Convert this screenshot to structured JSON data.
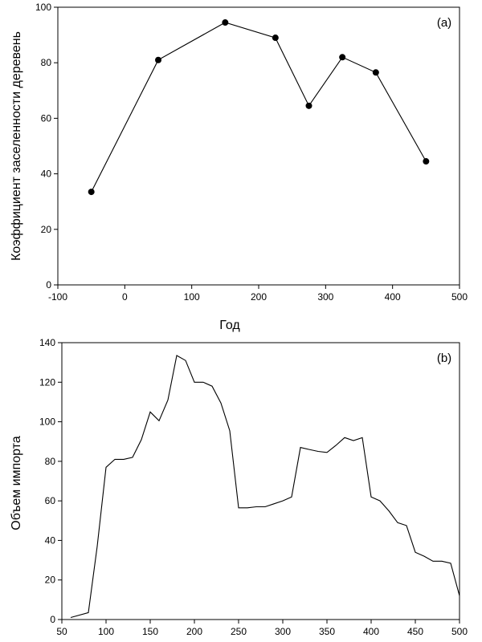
{
  "chart_data": [
    {
      "id": "a",
      "type": "line",
      "panel_label": "(a)",
      "xlabel": "Год",
      "ylabel": "Коэффициент заселенности деревень",
      "xlim": [
        -100,
        500
      ],
      "ylim": [
        0,
        100
      ],
      "xticks": [
        -100,
        0,
        100,
        200,
        300,
        400,
        500
      ],
      "yticks": [
        0,
        20,
        40,
        60,
        80,
        100
      ],
      "markers": true,
      "x": [
        -50,
        50,
        150,
        225,
        275,
        325,
        375,
        450
      ],
      "y": [
        33.5,
        81,
        94.5,
        89,
        64.5,
        82,
        76.5,
        44.5
      ]
    },
    {
      "id": "b",
      "type": "line",
      "panel_label": "(b)",
      "xlabel": "",
      "ylabel": "Объем импорта",
      "xlim": [
        50,
        500
      ],
      "ylim": [
        0,
        140
      ],
      "xticks": [
        50,
        100,
        150,
        200,
        250,
        300,
        350,
        400,
        450,
        500
      ],
      "yticks": [
        0,
        20,
        40,
        60,
        80,
        100,
        120,
        140
      ],
      "markers": false,
      "x": [
        60,
        80,
        90,
        100,
        110,
        120,
        130,
        140,
        150,
        160,
        170,
        180,
        190,
        200,
        210,
        220,
        230,
        240,
        250,
        260,
        270,
        280,
        290,
        300,
        310,
        320,
        330,
        340,
        350,
        360,
        370,
        380,
        390,
        400,
        410,
        420,
        430,
        440,
        450,
        460,
        470,
        480,
        490,
        500
      ],
      "y": [
        1,
        3.5,
        37,
        77,
        81,
        81,
        82,
        91,
        105,
        100.5,
        111,
        133.5,
        131,
        120,
        120,
        118,
        109.5,
        95.5,
        56.5,
        56.5,
        57,
        57,
        58.5,
        60,
        62,
        87,
        86,
        85,
        84.5,
        88,
        92,
        90.5,
        92,
        62,
        60,
        55,
        49,
        47.5,
        34,
        32,
        29.5,
        29.5,
        28.5,
        12
      ]
    }
  ]
}
